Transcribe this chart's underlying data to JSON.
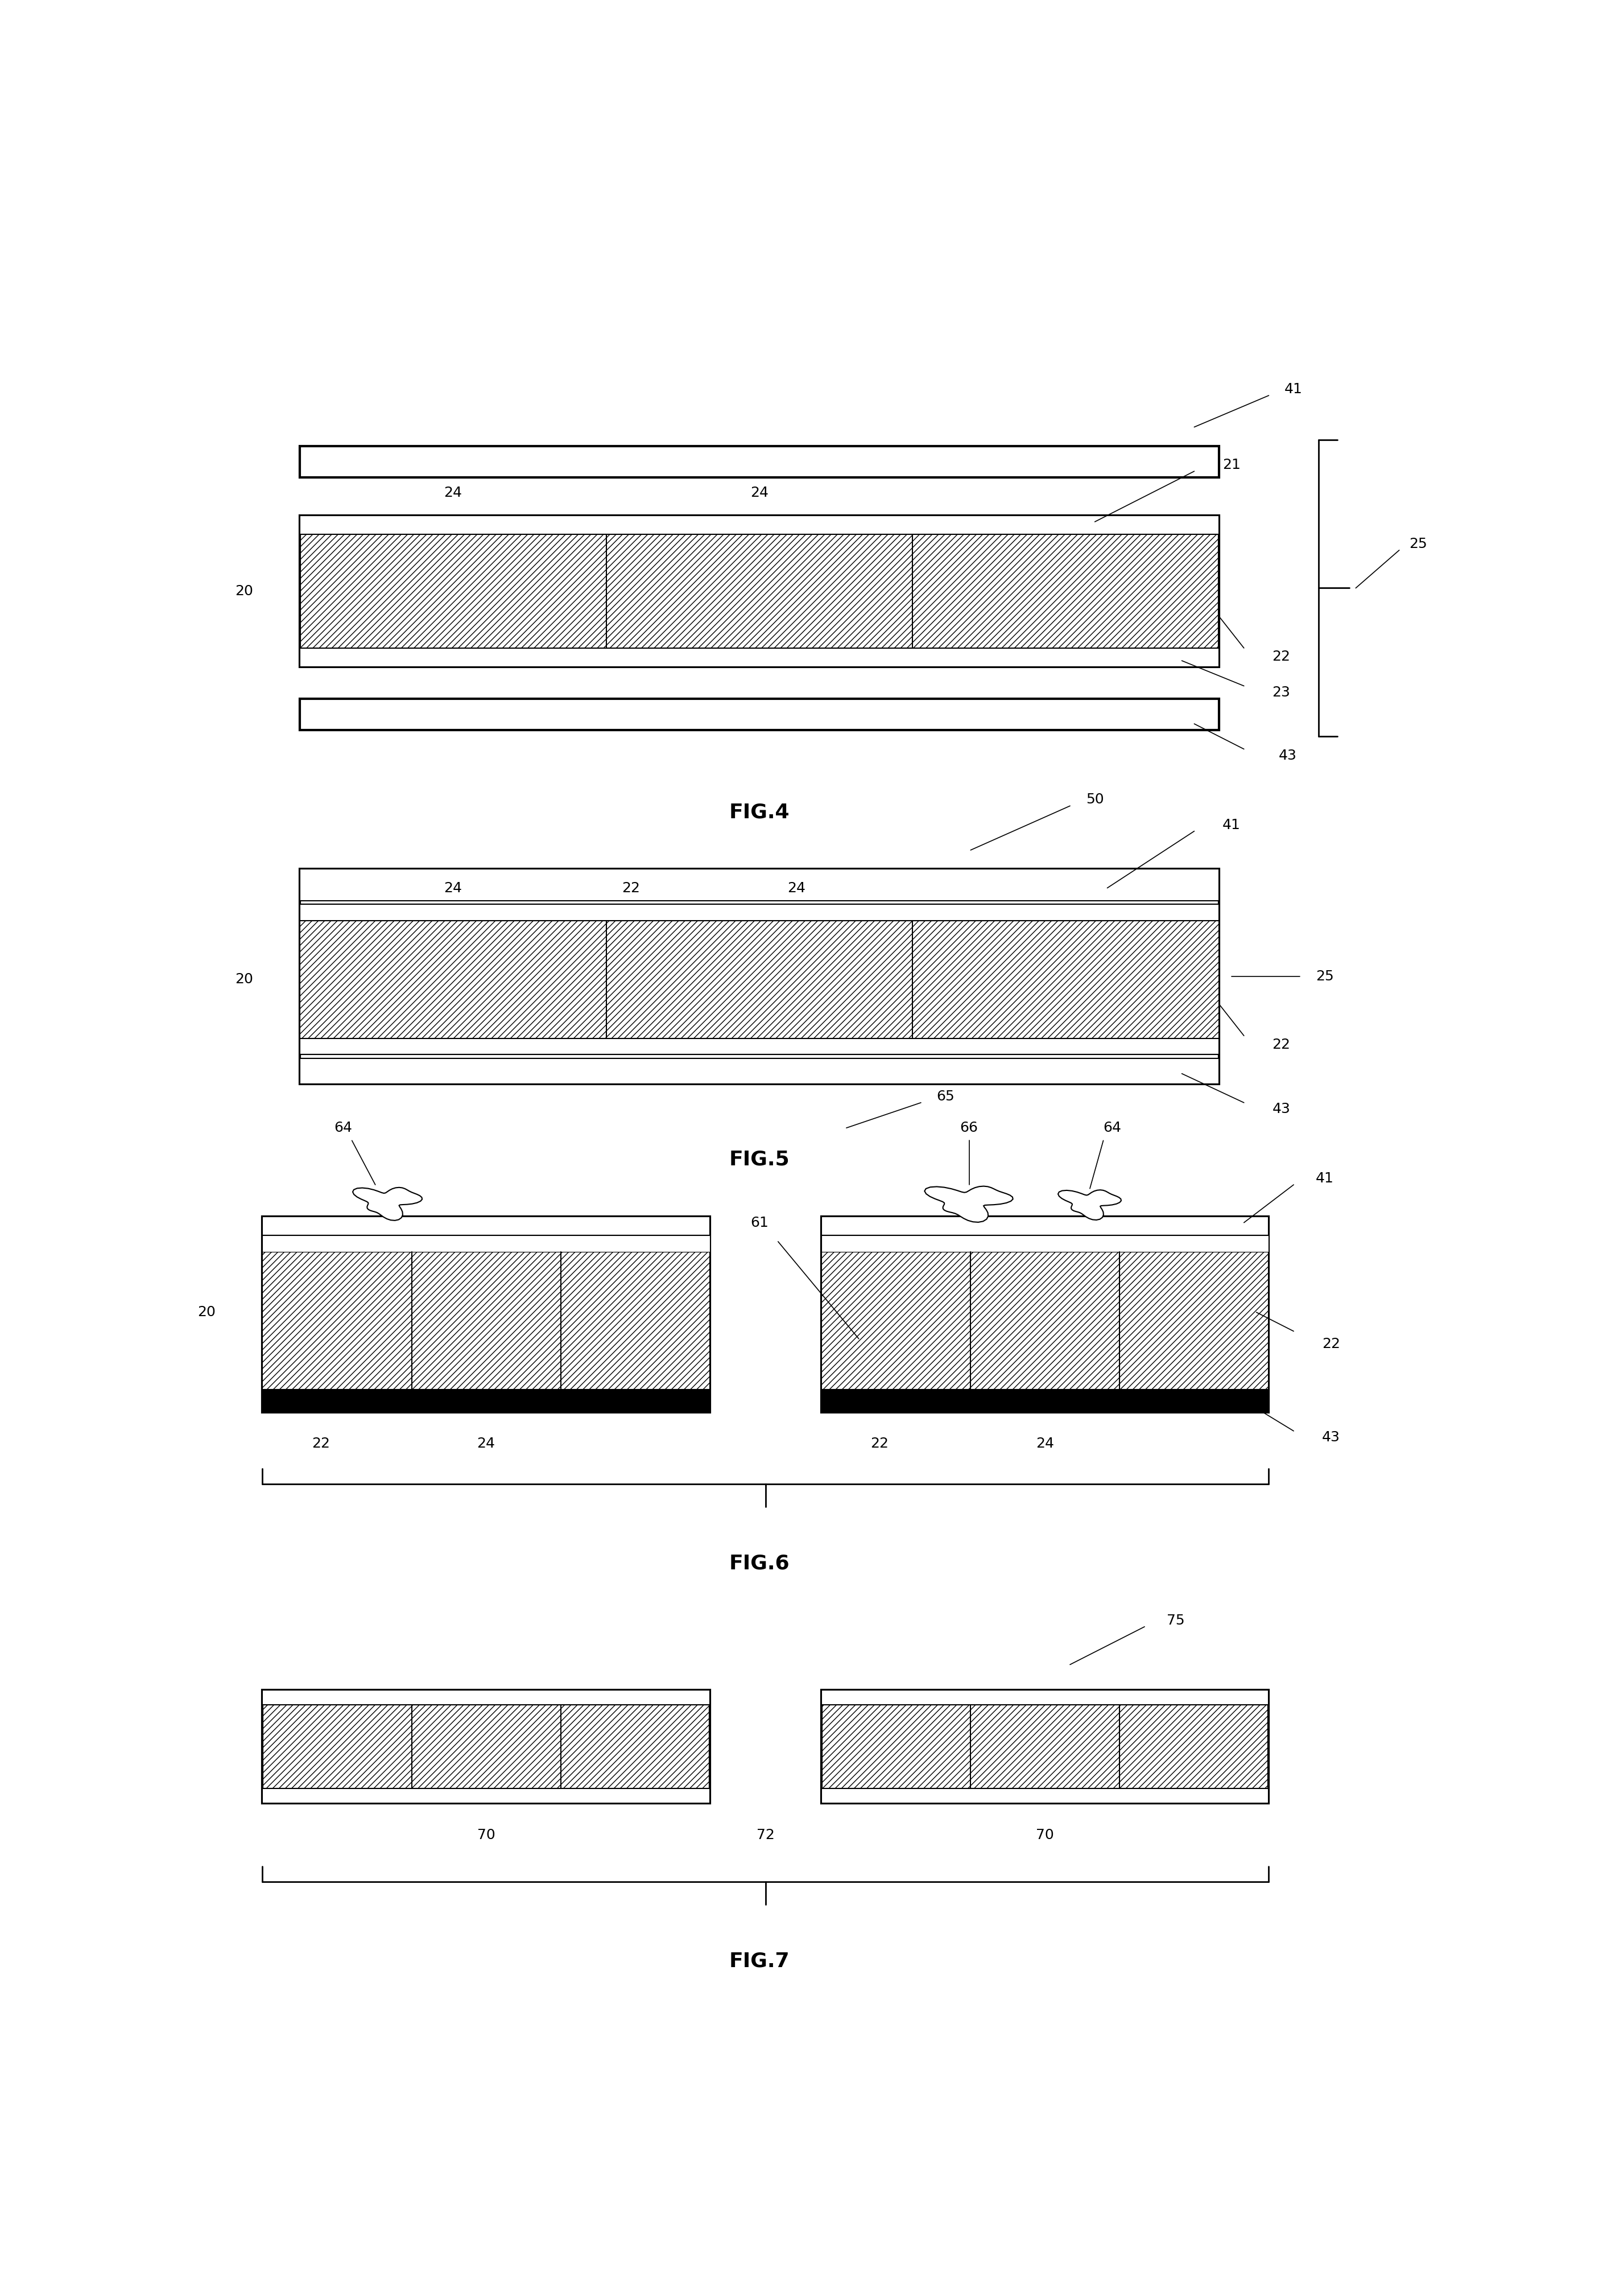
{
  "fig_width": 28.18,
  "fig_height": 40.35,
  "bg_color": "#ffffff",
  "line_color": "#000000",
  "hatch_pattern": "///",
  "figures": [
    "FIG.4",
    "FIG.5",
    "FIG.6",
    "FIG.7"
  ],
  "lw_thick": 3.0,
  "lw_med": 2.0,
  "lw_thin": 1.5,
  "lw_label": 1.2,
  "fs_label": 18,
  "fs_fig": 26
}
